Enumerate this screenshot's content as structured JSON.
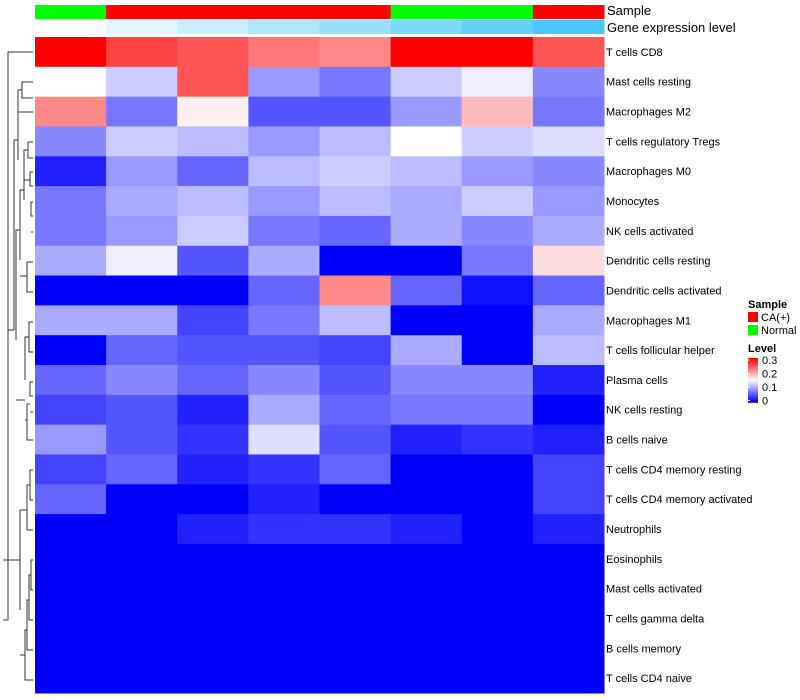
{
  "chart_data": {
    "type": "heatmap",
    "title": "",
    "columns_count": 8,
    "annotations": {
      "sample": {
        "title": "Sample",
        "values": [
          "Normal",
          "CA(+)",
          "CA(+)",
          "CA(+)",
          "CA(+)",
          "Normal",
          "Normal",
          "CA(+)"
        ]
      },
      "gene_expression": {
        "title": "Gene expression level",
        "values": [
          0,
          1,
          2,
          3,
          4,
          5,
          6,
          7
        ]
      }
    },
    "rows": [
      "T cells CD8",
      "Mast cells resting",
      "Macrophages M2",
      "T cells regulatory  Tregs",
      "Macrophages M0",
      "Monocytes",
      "NK cells activated",
      "Dendritic cells resting",
      "Dendritic cells activated",
      "Macrophages M1",
      "T cells follicular helper",
      "Plasma cells",
      "NK cells resting",
      "B cells naive",
      "T cells CD4 memory resting",
      "T cells CD4 memory activated",
      "Neutrophils",
      "Eosinophils",
      "Mast cells activated",
      "T cells gamma delta",
      "B cells memory",
      "T cells CD4 naive"
    ],
    "values": [
      [
        0.3,
        0.26,
        0.25,
        0.23,
        0.22,
        0.3,
        0.3,
        0.25
      ],
      [
        0.15,
        0.12,
        0.25,
        0.09,
        0.07,
        0.12,
        0.14,
        0.08
      ],
      [
        0.22,
        0.07,
        0.16,
        0.05,
        0.05,
        0.09,
        0.19,
        0.07
      ],
      [
        0.08,
        0.12,
        0.11,
        0.09,
        0.11,
        0.15,
        0.12,
        0.13
      ],
      [
        0.02,
        0.09,
        0.06,
        0.11,
        0.12,
        0.11,
        0.09,
        0.08
      ],
      [
        0.07,
        0.1,
        0.11,
        0.09,
        0.11,
        0.1,
        0.12,
        0.09
      ],
      [
        0.07,
        0.09,
        0.12,
        0.07,
        0.06,
        0.1,
        0.08,
        0.1
      ],
      [
        0.1,
        0.14,
        0.05,
        0.1,
        0.0,
        0.0,
        0.07,
        0.17
      ],
      [
        0.0,
        0.0,
        0.0,
        0.06,
        0.22,
        0.06,
        0.01,
        0.06
      ],
      [
        0.1,
        0.1,
        0.04,
        0.07,
        0.11,
        0.0,
        0.0,
        0.1
      ],
      [
        0.0,
        0.06,
        0.05,
        0.05,
        0.04,
        0.1,
        0.0,
        0.11
      ],
      [
        0.06,
        0.08,
        0.06,
        0.08,
        0.05,
        0.08,
        0.08,
        0.02
      ],
      [
        0.04,
        0.05,
        0.02,
        0.1,
        0.06,
        0.07,
        0.07,
        0.0
      ],
      [
        0.09,
        0.05,
        0.03,
        0.13,
        0.05,
        0.02,
        0.03,
        0.02
      ],
      [
        0.04,
        0.06,
        0.02,
        0.03,
        0.06,
        0.0,
        0.0,
        0.04
      ],
      [
        0.06,
        0.0,
        0.0,
        0.02,
        0.0,
        0.0,
        0.0,
        0.04
      ],
      [
        0.0,
        0.0,
        0.02,
        0.03,
        0.03,
        0.02,
        0.0,
        0.02
      ],
      [
        0,
        0,
        0,
        0,
        0,
        0,
        0,
        0
      ],
      [
        0,
        0,
        0,
        0,
        0,
        0,
        0,
        0
      ],
      [
        0,
        0,
        0,
        0,
        0,
        0,
        0,
        0
      ],
      [
        0,
        0,
        0,
        0,
        0,
        0,
        0,
        0
      ],
      [
        0,
        0,
        0,
        0,
        0,
        0,
        0,
        0
      ]
    ],
    "color_scale": {
      "min": 0,
      "mid": 0.15,
      "max": 0.3,
      "colors": [
        "#0000ff",
        "#ffffff",
        "#ff0000"
      ]
    },
    "legend": {
      "position": "right",
      "sample_title": "Sample",
      "sample_entries": [
        {
          "label": "CA(+)",
          "color": "#ff0000"
        },
        {
          "label": "Normal",
          "color": "#00ff00"
        }
      ],
      "level_title": "Level",
      "level_ticks": [
        "0.3",
        "0.2",
        "0.1",
        "0"
      ]
    },
    "gene_colors": [
      "#ffffff",
      "#4ac8f7"
    ]
  }
}
